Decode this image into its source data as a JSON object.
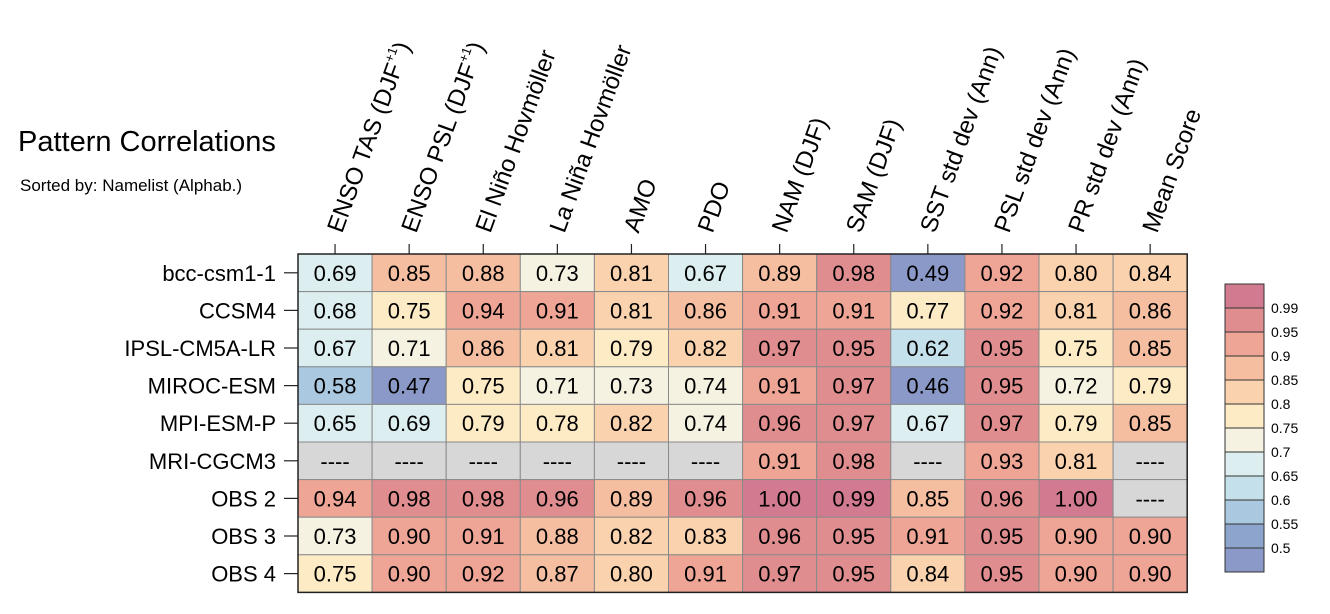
{
  "chart_data": {
    "type": "heatmap",
    "title": "Pattern Correlations",
    "subtitle": "Sorted by: Namelist (Alphab.)",
    "columns": [
      {
        "label": "ENSO TAS (DJF",
        "sup": "+1",
        "tail": ")"
      },
      {
        "label": "ENSO PSL (DJF",
        "sup": "+1",
        "tail": ")"
      },
      {
        "label": "El Niño Hovmöller",
        "sup": "",
        "tail": ""
      },
      {
        "label": "La Niña Hovmöller",
        "sup": "",
        "tail": ""
      },
      {
        "label": "AMO",
        "sup": "",
        "tail": ""
      },
      {
        "label": "PDO",
        "sup": "",
        "tail": ""
      },
      {
        "label": "NAM (DJF)",
        "sup": "",
        "tail": ""
      },
      {
        "label": "SAM (DJF)",
        "sup": "",
        "tail": ""
      },
      {
        "label": "SST std dev (Ann)",
        "sup": "",
        "tail": ""
      },
      {
        "label": "PSL std dev (Ann)",
        "sup": "",
        "tail": ""
      },
      {
        "label": "PR std dev (Ann)",
        "sup": "",
        "tail": ""
      },
      {
        "label": "Mean Score",
        "sup": "",
        "tail": ""
      }
    ],
    "rows": [
      "bcc-csm1-1",
      "CCSM4",
      "IPSL-CM5A-LR",
      "MIROC-ESM",
      "MPI-ESM-P",
      "MRI-CGCM3",
      "OBS 2",
      "OBS 3",
      "OBS 4"
    ],
    "values": [
      [
        0.69,
        0.85,
        0.88,
        0.73,
        0.81,
        0.67,
        0.89,
        0.98,
        0.49,
        0.92,
        0.8,
        0.84
      ],
      [
        0.68,
        0.75,
        0.94,
        0.91,
        0.81,
        0.86,
        0.91,
        0.91,
        0.77,
        0.92,
        0.81,
        0.86
      ],
      [
        0.67,
        0.71,
        0.86,
        0.81,
        0.79,
        0.82,
        0.97,
        0.95,
        0.62,
        0.95,
        0.75,
        0.85
      ],
      [
        0.58,
        0.47,
        0.75,
        0.71,
        0.73,
        0.74,
        0.91,
        0.97,
        0.46,
        0.95,
        0.72,
        0.79
      ],
      [
        0.65,
        0.69,
        0.79,
        0.78,
        0.82,
        0.74,
        0.96,
        0.97,
        0.67,
        0.97,
        0.79,
        0.85
      ],
      [
        null,
        null,
        null,
        null,
        null,
        null,
        0.91,
        0.98,
        null,
        0.93,
        0.81,
        null
      ],
      [
        0.94,
        0.98,
        0.98,
        0.96,
        0.89,
        0.96,
        1.0,
        0.99,
        0.85,
        0.96,
        1.0,
        null
      ],
      [
        0.73,
        0.9,
        0.91,
        0.88,
        0.82,
        0.83,
        0.96,
        0.95,
        0.91,
        0.95,
        0.9,
        0.9
      ],
      [
        0.75,
        0.9,
        0.92,
        0.87,
        0.8,
        0.91,
        0.97,
        0.95,
        0.84,
        0.95,
        0.9,
        0.9
      ]
    ],
    "missing_label": "----",
    "colorbar": {
      "labels": [
        "0.99",
        "0.95",
        "0.9",
        "0.85",
        "0.8",
        "0.75",
        "0.7",
        "0.65",
        "0.6",
        "0.55",
        "0.5"
      ],
      "colors": [
        "#d27b90",
        "#df8d8f",
        "#eea596",
        "#f6bea0",
        "#fad3ae",
        "#fdebc6",
        "#f5f2e2",
        "#ddeef1",
        "#c4e0ea",
        "#aac8df",
        "#8da4cd",
        "#8a99c8"
      ]
    },
    "thresholds": [
      0.5,
      0.55,
      0.6,
      0.65,
      0.7,
      0.75,
      0.8,
      0.85,
      0.9,
      0.95,
      0.99
    ],
    "scale_colors_low_to_high": [
      "#8a99c8",
      "#8da4cd",
      "#aac8df",
      "#c4e0ea",
      "#ddeef1",
      "#f5f2e2",
      "#fdebc6",
      "#fad3ae",
      "#f6bea0",
      "#eea596",
      "#df8d8f",
      "#d27b90"
    ],
    "missing_color": "#d7d7d7"
  }
}
